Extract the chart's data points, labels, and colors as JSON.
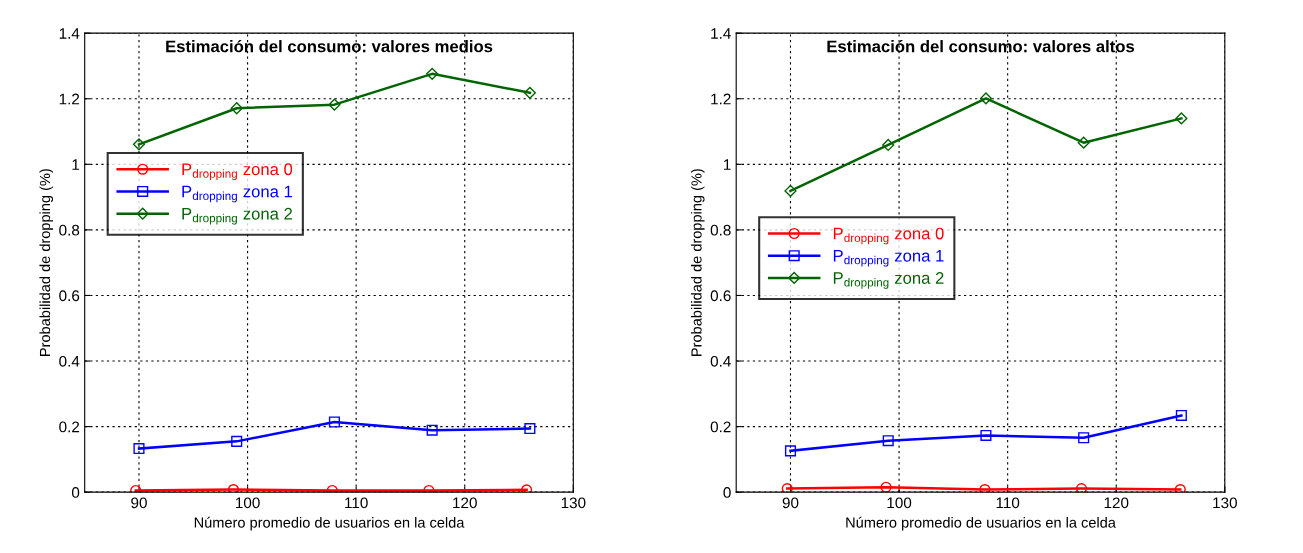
{
  "chart_data": [
    {
      "type": "line",
      "title": "Estimación del consumo: valores medios",
      "xlabel": "Número promedio de usuarios en la celda",
      "ylabel": "Probabilidad de dropping (%)",
      "xlim": [
        85,
        130
      ],
      "xticks": [
        90,
        100,
        110,
        120,
        130
      ],
      "ylim": [
        0,
        1.4
      ],
      "yticks": [
        0,
        0.2,
        0.4,
        0.6,
        0.8,
        1,
        1.2,
        1.4
      ],
      "grid": true,
      "legend": "left",
      "line_style": "solid",
      "series": [
        {
          "name": "P$_{dropping}$ zona 0",
          "color": "#ff0000",
          "marker": "circle",
          "x": [
            89.7,
            98.7,
            107.8,
            116.7,
            125.7
          ],
          "values": [
            0.005,
            0.008,
            0.005,
            0.005,
            0.007
          ]
        },
        {
          "name": "P$_{dropping}$ zona 1",
          "color": "#0000ff",
          "marker": "square",
          "x": [
            90,
            99,
            108,
            117,
            126
          ],
          "values": [
            0.133,
            0.155,
            0.214,
            0.189,
            0.194
          ]
        },
        {
          "name": "P$_{dropping}$ zona 2",
          "color": "#006400",
          "marker": "diamond",
          "x": [
            90,
            99,
            108,
            117,
            126
          ],
          "values": [
            1.061,
            1.171,
            1.182,
            1.276,
            1.218
          ]
        }
      ]
    },
    {
      "type": "line",
      "title": "Estimación del consumo: valores altos",
      "xlabel": "Número promedio de usuarios en la celda",
      "ylabel": "Probabilidad de dropping (%)",
      "xlim": [
        85,
        130
      ],
      "xticks": [
        90,
        100,
        110,
        120,
        130
      ],
      "ylim": [
        0,
        1.4
      ],
      "yticks": [
        0,
        0.2,
        0.4,
        0.6,
        0.8,
        1,
        1.2,
        1.4
      ],
      "grid": true,
      "legend": "left",
      "line_style": "solid",
      "series": [
        {
          "name": "P$_{dropping}$ zona 0",
          "color": "#ff0000",
          "marker": "circle",
          "x": [
            89.7,
            98.8,
            107.9,
            116.8,
            125.9
          ],
          "values": [
            0.011,
            0.015,
            0.008,
            0.011,
            0.008
          ]
        },
        {
          "name": "P$_{dropping}$ zona 1",
          "color": "#0000ff",
          "marker": "square",
          "x": [
            90,
            99,
            108,
            117,
            126
          ],
          "values": [
            0.126,
            0.157,
            0.173,
            0.166,
            0.234
          ]
        },
        {
          "name": "P$_{dropping}$ zona 2",
          "color": "#006400",
          "marker": "diamond",
          "x": [
            90,
            99,
            108,
            117,
            126
          ],
          "values": [
            0.919,
            1.059,
            1.201,
            1.066,
            1.14
          ]
        }
      ]
    }
  ]
}
